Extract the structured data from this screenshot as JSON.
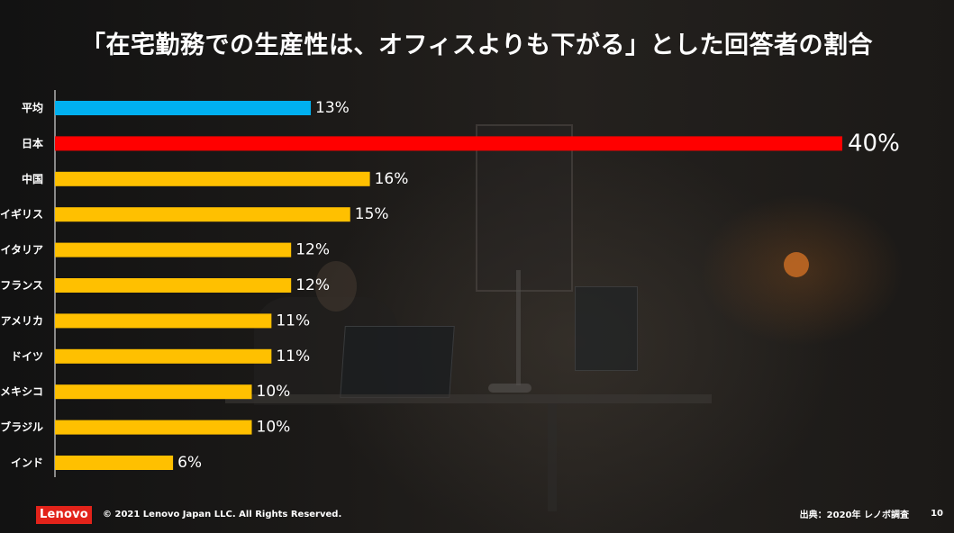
{
  "slide": {
    "title": "「在宅勤務での生産性は、オフィスよりも下がる」とした回答者の割合",
    "logo": "Lenovo",
    "copyright": "© 2021 Lenovo Japan LLC. All Rights Reserved.",
    "source": "出典：2020年 レノボ調査",
    "page_number": "10"
  },
  "colors": {
    "average": "#00b0f0",
    "highlight": "#ff0000",
    "default": "#ffc000",
    "axis": "#ffffff",
    "brand_red": "#e2231a"
  },
  "chart_data": {
    "type": "bar",
    "orientation": "horizontal",
    "title": "「在宅勤務での生産性は、オフィスよりも下がる」とした回答者の割合",
    "categories": [
      "平均",
      "日本",
      "中国",
      "イギリス",
      "イタリア",
      "フランス",
      "アメリカ",
      "ドイツ",
      "メキシコ",
      "ブラジル",
      "インド"
    ],
    "values": [
      13,
      40,
      16,
      15,
      12,
      12,
      11,
      11,
      10,
      10,
      6
    ],
    "value_labels": [
      "13%",
      "40%",
      "16%",
      "15%",
      "12%",
      "12%",
      "11%",
      "11%",
      "10%",
      "10%",
      "6%"
    ],
    "bar_colors": [
      "#00b0f0",
      "#ff0000",
      "#ffc000",
      "#ffc000",
      "#ffc000",
      "#ffc000",
      "#ffc000",
      "#ffc000",
      "#ffc000",
      "#ffc000",
      "#ffc000"
    ],
    "xlim": [
      0,
      40
    ],
    "xlabel": "",
    "ylabel": "",
    "legend": "none",
    "grid": false
  }
}
